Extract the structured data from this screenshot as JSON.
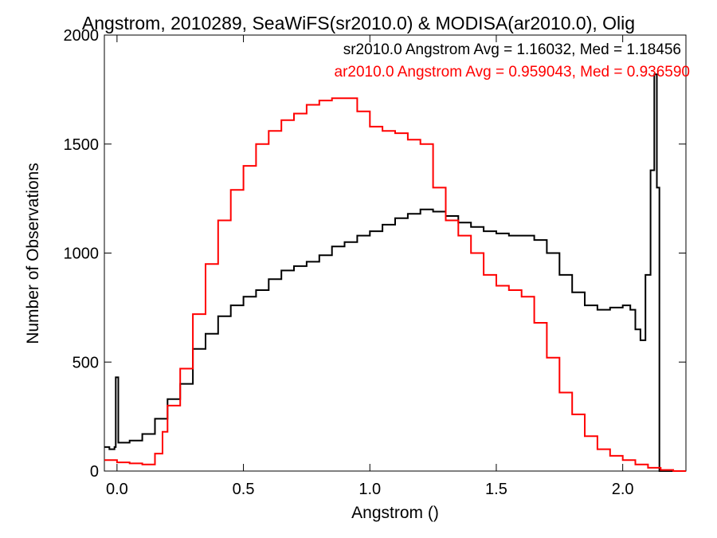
{
  "chart_data": {
    "type": "histogram",
    "title": "Angstrom, 2010289, SeaWiFS(sr2010.0) & MODISA(ar2010.0), Olig",
    "xlabel": "Angstrom ()",
    "ylabel": "Number of Observations",
    "xlim": [
      -0.05,
      2.25
    ],
    "ylim": [
      0,
      2000
    ],
    "xticks": [
      0.0,
      0.5,
      1.0,
      1.5,
      2.0
    ],
    "xtick_labels": [
      "0.0",
      "0.5",
      "1.0",
      "1.5",
      "2.0"
    ],
    "yticks": [
      0,
      500,
      1000,
      1500,
      2000
    ],
    "ytick_labels": [
      "0",
      "500",
      "1000",
      "1500",
      "2000"
    ],
    "legend": [
      {
        "text": "sr2010.0 Angstrom Avg = 1.16032, Med = 1.18456",
        "color": "#000000"
      },
      {
        "text": "ar2010.0 Angstrom Avg = 0.959043, Med = 0.936590",
        "color": "#ff0000"
      }
    ],
    "series": [
      {
        "color": "#000000",
        "points": [
          [
            -0.05,
            110
          ],
          [
            -0.03,
            100
          ],
          [
            -0.01,
            110
          ],
          [
            -0.005,
            430
          ],
          [
            0.005,
            130
          ],
          [
            0.05,
            140
          ],
          [
            0.1,
            170
          ],
          [
            0.15,
            240
          ],
          [
            0.2,
            330
          ],
          [
            0.25,
            400
          ],
          [
            0.3,
            560
          ],
          [
            0.35,
            630
          ],
          [
            0.4,
            710
          ],
          [
            0.45,
            760
          ],
          [
            0.5,
            800
          ],
          [
            0.55,
            830
          ],
          [
            0.6,
            880
          ],
          [
            0.65,
            920
          ],
          [
            0.7,
            940
          ],
          [
            0.75,
            960
          ],
          [
            0.8,
            990
          ],
          [
            0.85,
            1030
          ],
          [
            0.9,
            1050
          ],
          [
            0.95,
            1080
          ],
          [
            1.0,
            1100
          ],
          [
            1.05,
            1130
          ],
          [
            1.1,
            1160
          ],
          [
            1.15,
            1180
          ],
          [
            1.2,
            1200
          ],
          [
            1.25,
            1190
          ],
          [
            1.3,
            1170
          ],
          [
            1.35,
            1140
          ],
          [
            1.4,
            1120
          ],
          [
            1.45,
            1100
          ],
          [
            1.5,
            1090
          ],
          [
            1.55,
            1080
          ],
          [
            1.6,
            1080
          ],
          [
            1.65,
            1060
          ],
          [
            1.7,
            1000
          ],
          [
            1.75,
            900
          ],
          [
            1.8,
            820
          ],
          [
            1.85,
            760
          ],
          [
            1.9,
            740
          ],
          [
            1.95,
            750
          ],
          [
            2.0,
            760
          ],
          [
            2.03,
            740
          ],
          [
            2.05,
            650
          ],
          [
            2.07,
            600
          ],
          [
            2.09,
            900
          ],
          [
            2.11,
            1380
          ],
          [
            2.125,
            1820
          ],
          [
            2.135,
            1300
          ],
          [
            2.145,
            800
          ],
          [
            2.145,
            0
          ],
          [
            2.25,
            0
          ]
        ]
      },
      {
        "color": "#ff0000",
        "points": [
          [
            -0.05,
            50
          ],
          [
            0.0,
            40
          ],
          [
            0.05,
            35
          ],
          [
            0.1,
            30
          ],
          [
            0.15,
            80
          ],
          [
            0.18,
            180
          ],
          [
            0.2,
            300
          ],
          [
            0.25,
            470
          ],
          [
            0.3,
            720
          ],
          [
            0.35,
            950
          ],
          [
            0.4,
            1150
          ],
          [
            0.45,
            1290
          ],
          [
            0.5,
            1400
          ],
          [
            0.55,
            1500
          ],
          [
            0.6,
            1560
          ],
          [
            0.65,
            1610
          ],
          [
            0.7,
            1640
          ],
          [
            0.75,
            1680
          ],
          [
            0.8,
            1700
          ],
          [
            0.85,
            1710
          ],
          [
            0.9,
            1710
          ],
          [
            0.95,
            1650
          ],
          [
            1.0,
            1580
          ],
          [
            1.05,
            1560
          ],
          [
            1.1,
            1550
          ],
          [
            1.15,
            1520
          ],
          [
            1.2,
            1500
          ],
          [
            1.25,
            1300
          ],
          [
            1.3,
            1150
          ],
          [
            1.35,
            1080
          ],
          [
            1.4,
            1000
          ],
          [
            1.45,
            900
          ],
          [
            1.5,
            850
          ],
          [
            1.55,
            830
          ],
          [
            1.6,
            800
          ],
          [
            1.65,
            680
          ],
          [
            1.7,
            520
          ],
          [
            1.75,
            360
          ],
          [
            1.8,
            260
          ],
          [
            1.85,
            160
          ],
          [
            1.9,
            100
          ],
          [
            1.95,
            70
          ],
          [
            2.0,
            50
          ],
          [
            2.05,
            30
          ],
          [
            2.1,
            15
          ],
          [
            2.15,
            5
          ],
          [
            2.2,
            0
          ],
          [
            2.25,
            0
          ]
        ]
      }
    ]
  }
}
